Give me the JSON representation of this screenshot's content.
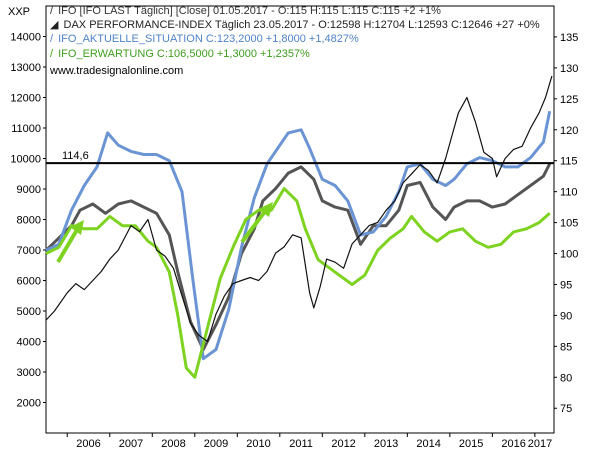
{
  "chart_data": {
    "type": "line",
    "corner_label": "XXP",
    "left_axis": {
      "ticks": [
        2000,
        3000,
        4000,
        5000,
        6000,
        7000,
        8000,
        9000,
        10000,
        11000,
        12000,
        13000,
        14000
      ],
      "range": [
        1000,
        15000
      ]
    },
    "right_axis": {
      "ticks": [
        75,
        80,
        85,
        90,
        95,
        100,
        105,
        110,
        115,
        120,
        125,
        130,
        135
      ],
      "range": [
        71,
        140
      ]
    },
    "x_axis": {
      "ticks": [
        "2006",
        "2007",
        "2008",
        "2009",
        "2010",
        "2011",
        "2012",
        "2013",
        "2014",
        "2015",
        "2016",
        "2017"
      ],
      "range": [
        2005.5,
        2017.45
      ]
    },
    "reference_line": {
      "value": 114.6,
      "label": "114,6",
      "color": "#000000"
    },
    "legend": [
      {
        "symbol": "/",
        "text": "IFO [IFO LAST Täglich] [Close] 01.05.2017 - O:115 H:115 L:115 C:115 +2 +1%",
        "color": "#333333"
      },
      {
        "symbol": "◢",
        "text": "DAX PERFORMANCE-INDEX Täglich 23.05.2017 - O:12598 H:12704 L:12593 C:12646 +27 +0%",
        "color": "#222222"
      },
      {
        "symbol": "/",
        "text": "IFO_AKTUELLE_SITUATION C:123,2000 +1,8000 +1,4827%",
        "color": "#4f83c9"
      },
      {
        "symbol": "/",
        "text": "IFO_ERWARTUNG C:106,5000 +1,3000 +1,2357%",
        "color": "#3d9e1e"
      }
    ],
    "watermark": "www.tradesignalonline.com",
    "series": [
      {
        "axis": "right",
        "color": "#555555",
        "x": [
          2005.5,
          2005.8,
          2006.1,
          2006.3,
          2006.6,
          2006.9,
          2007.2,
          2007.5,
          2007.8,
          2008.1,
          2008.4,
          2008.6,
          2008.9,
          2009.2,
          2009.5,
          2009.8,
          2010.1,
          2010.4,
          2010.6,
          2010.9,
          2011.2,
          2011.5,
          2011.8,
          2012.0,
          2012.3,
          2012.6,
          2012.9,
          2013.2,
          2013.5,
          2013.8,
          2014.0,
          2014.3,
          2014.6,
          2014.9,
          2015.1,
          2015.4,
          2015.7,
          2016.0,
          2016.3,
          2016.6,
          2016.9,
          2017.2,
          2017.35
        ],
        "y": [
          100.5,
          102.5,
          104.5,
          107,
          108,
          106.5,
          108,
          108.5,
          107.5,
          106.5,
          103,
          97,
          89,
          84.5,
          88.5,
          93,
          100,
          104,
          108.5,
          110.5,
          113,
          114,
          112,
          108.5,
          107.5,
          107,
          101.5,
          104.5,
          104.5,
          107,
          111,
          111.5,
          107.5,
          105.5,
          107.5,
          108.5,
          108.5,
          107.5,
          108,
          109.5,
          111,
          112.5,
          114.5
        ]
      },
      {
        "axis": "right",
        "color": "#6a94d4",
        "x": [
          2005.5,
          2005.8,
          2006.1,
          2006.4,
          2006.7,
          2006.95,
          2007.2,
          2007.5,
          2007.8,
          2008.1,
          2008.4,
          2008.7,
          2008.95,
          2009.2,
          2009.5,
          2009.8,
          2010.1,
          2010.4,
          2010.7,
          2011.0,
          2011.2,
          2011.5,
          2011.7,
          2012.0,
          2012.3,
          2012.6,
          2012.9,
          2013.2,
          2013.5,
          2013.8,
          2014.0,
          2014.3,
          2014.6,
          2014.9,
          2015.1,
          2015.4,
          2015.7,
          2016.0,
          2016.3,
          2016.6,
          2016.9,
          2017.2,
          2017.35
        ],
        "y": [
          100.5,
          101.5,
          107,
          111,
          114,
          119.5,
          117.5,
          116.5,
          116,
          116,
          115,
          110,
          96,
          83,
          84.5,
          91,
          101,
          109,
          114.5,
          117.5,
          119.5,
          120,
          117,
          112,
          111,
          108.5,
          103,
          103.5,
          106,
          110,
          114,
          114.5,
          112,
          111,
          112,
          114.5,
          115.5,
          115,
          114,
          114,
          115.5,
          118,
          123
        ]
      },
      {
        "axis": "right",
        "color": "#7ed321",
        "x": [
          2005.5,
          2005.8,
          2006.1,
          2006.4,
          2006.7,
          2007.0,
          2007.3,
          2007.6,
          2007.9,
          2008.1,
          2008.4,
          2008.6,
          2008.8,
          2009.0,
          2009.3,
          2009.6,
          2009.9,
          2010.2,
          2010.5,
          2010.8,
          2011.1,
          2011.4,
          2011.6,
          2011.9,
          2012.1,
          2012.4,
          2012.7,
          2013.0,
          2013.3,
          2013.6,
          2013.9,
          2014.1,
          2014.4,
          2014.7,
          2015.0,
          2015.3,
          2015.6,
          2015.9,
          2016.2,
          2016.5,
          2016.8,
          2017.1,
          2017.35
        ],
        "y": [
          100,
          101,
          104.5,
          104,
          104,
          106,
          104.5,
          104.5,
          102,
          101,
          97,
          90,
          81.5,
          80,
          88,
          96,
          101,
          105.5,
          107,
          107,
          110.5,
          108.5,
          104,
          99,
          98,
          96.5,
          95,
          96.5,
          100.5,
          102.5,
          104,
          106,
          103.5,
          102,
          103.5,
          104,
          102,
          101,
          101.5,
          103.5,
          104,
          105,
          106.5
        ]
      },
      {
        "axis": "left",
        "color": "#111111",
        "x": [
          2005.5,
          2005.7,
          2006.0,
          2006.2,
          2006.4,
          2006.6,
          2006.8,
          2007.0,
          2007.2,
          2007.5,
          2007.7,
          2007.9,
          2008.1,
          2008.3,
          2008.5,
          2008.7,
          2008.9,
          2009.1,
          2009.3,
          2009.5,
          2009.7,
          2009.9,
          2010.1,
          2010.3,
          2010.5,
          2010.7,
          2010.9,
          2011.1,
          2011.3,
          2011.5,
          2011.7,
          2011.8,
          2011.95,
          2012.1,
          2012.3,
          2012.5,
          2012.7,
          2012.9,
          2013.1,
          2013.3,
          2013.5,
          2013.7,
          2013.9,
          2014.1,
          2014.3,
          2014.5,
          2014.7,
          2014.9,
          2015.1,
          2015.2,
          2015.4,
          2015.6,
          2015.8,
          2016.0,
          2016.1,
          2016.3,
          2016.5,
          2016.7,
          2016.9,
          2017.1,
          2017.25,
          2017.4
        ],
        "y": [
          4700,
          5000,
          5600,
          5900,
          5700,
          6000,
          6300,
          6700,
          7000,
          7800,
          7600,
          8000,
          7000,
          6800,
          6400,
          5500,
          4600,
          4200,
          4000,
          4900,
          5500,
          5900,
          6000,
          6100,
          6000,
          6300,
          6900,
          7100,
          7500,
          7400,
          5600,
          5100,
          5800,
          6700,
          6600,
          6400,
          7200,
          7500,
          7800,
          7900,
          8300,
          8600,
          9200,
          9500,
          9800,
          9600,
          9200,
          10000,
          11000,
          11500,
          12000,
          11200,
          10200,
          10000,
          9400,
          10000,
          10300,
          10400,
          11000,
          11500,
          12000,
          12700
        ]
      }
    ]
  }
}
